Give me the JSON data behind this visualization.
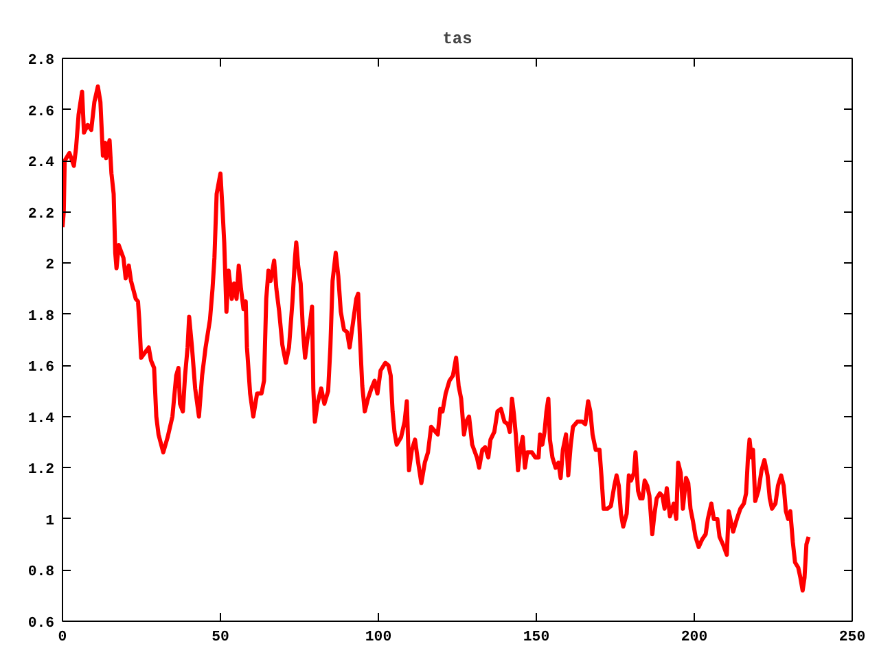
{
  "chart_data": {
    "type": "line",
    "title": "tas",
    "color": "#ff0000",
    "line_style": "solid",
    "xlim": [
      0,
      250
    ],
    "xticks": [
      0,
      50,
      100,
      150,
      200,
      250
    ],
    "ylim": [
      0.6,
      2.8
    ],
    "yticks": [
      0.6,
      0.8,
      1,
      1.2,
      1.4,
      1.6,
      1.8,
      2,
      2.2,
      2.4,
      2.6,
      2.8
    ],
    "x": [
      0,
      0.4,
      0.7,
      2.2,
      3.6,
      4.3,
      5.1,
      6.2,
      6.8,
      8,
      9.1,
      10.1,
      11.2,
      12,
      12.8,
      13.5,
      13.8,
      14.9,
      15.5,
      16.2,
      16.7,
      17.1,
      17.8,
      19.3,
      20,
      21,
      21.7,
      23.2,
      23.9,
      24.3,
      24.9,
      26.1,
      27.3,
      28,
      29,
      29.7,
      30.4,
      31.9,
      33.3,
      34.8,
      36,
      36.7,
      37.2,
      38.1,
      38.8,
      39.6,
      40.1,
      41,
      42,
      43.2,
      44.2,
      45.3,
      46.7,
      47.5,
      48.1,
      48.8,
      50,
      50.7,
      51.2,
      51.9,
      52.6,
      53.6,
      54.3,
      55.1,
      55.8,
      56.5,
      57.3,
      58,
      58.4,
      59.4,
      60.4,
      61.6,
      63,
      63.8,
      64.5,
      65.2,
      65.9,
      67,
      67.7,
      68.6,
      69.6,
      70.7,
      71.7,
      72.8,
      73.6,
      74,
      74.6,
      75.4,
      76.1,
      76.8,
      77.5,
      78.3,
      79,
      79.4,
      79.9,
      80.7,
      81.9,
      82.9,
      84.1,
      84.8,
      85.5,
      86.5,
      87.3,
      88.1,
      89.1,
      90.1,
      90.9,
      92,
      93,
      93.6,
      94.2,
      94.9,
      95.7,
      96.7,
      97.8,
      98.8,
      99.7,
      100.7,
      102.2,
      103.2,
      103.9,
      104.5,
      105.1,
      105.8,
      107.2,
      108.3,
      109,
      109.7,
      110.6,
      111.6,
      112.6,
      113.6,
      114.7,
      115.7,
      116.7,
      118.1,
      118.8,
      119.6,
      120.3,
      121.3,
      122.5,
      123.6,
      124.6,
      125.4,
      126.2,
      127.1,
      127.8,
      128.7,
      129.7,
      131.2,
      131.9,
      132.9,
      133.8,
      134.8,
      135.5,
      136.7,
      137.7,
      138.8,
      139.9,
      141,
      141.6,
      142.3,
      142.9,
      143.5,
      144.2,
      144.9,
      145.7,
      146.4,
      147.1,
      148.6,
      149.7,
      150.7,
      151.2,
      151.9,
      152.6,
      153.2,
      153.8,
      154.3,
      155.1,
      156.1,
      157,
      157.7,
      158.4,
      159.4,
      160.1,
      160.9,
      161.6,
      163,
      164.5,
      165.5,
      166.4,
      167.1,
      167.8,
      168.8,
      170,
      170.6,
      171.3,
      172.5,
      173.6,
      174.7,
      175.4,
      176.1,
      176.8,
      177.5,
      178.6,
      179.3,
      180,
      180.9,
      181.4,
      182.2,
      182.9,
      183.6,
      184.3,
      185.1,
      185.8,
      186.7,
      187.4,
      188.1,
      189.1,
      189.9,
      190.6,
      191.3,
      192.3,
      193.5,
      194.3,
      194.9,
      195.7,
      196.4,
      197.4,
      198.1,
      198.8,
      199.6,
      200.4,
      201.4,
      202.5,
      203.6,
      204.3,
      205.4,
      206.2,
      207.3,
      208,
      209.1,
      210.3,
      210.9,
      211.6,
      212.3,
      213.5,
      214.6,
      215.7,
      216.4,
      217,
      217.5,
      218.1,
      218.6,
      219.3,
      220.3,
      221.3,
      222.2,
      223.2,
      223.9,
      224.6,
      225.7,
      226.5,
      227.5,
      228.3,
      229,
      229.7,
      230.4,
      231.2,
      231.9,
      232.9,
      233.6,
      234.3,
      234.9,
      235.5,
      236.2
    ],
    "values": [
      2.14,
      2.2,
      2.4,
      2.43,
      2.38,
      2.45,
      2.58,
      2.67,
      2.51,
      2.54,
      2.52,
      2.63,
      2.69,
      2.63,
      2.42,
      2.47,
      2.41,
      2.48,
      2.35,
      2.27,
      2.04,
      1.98,
      2.07,
      2.02,
      1.94,
      1.99,
      1.93,
      1.86,
      1.85,
      1.78,
      1.63,
      1.65,
      1.67,
      1.62,
      1.59,
      1.4,
      1.33,
      1.26,
      1.32,
      1.4,
      1.56,
      1.59,
      1.45,
      1.42,
      1.56,
      1.67,
      1.79,
      1.67,
      1.51,
      1.4,
      1.56,
      1.67,
      1.78,
      1.9,
      2.02,
      2.27,
      2.35,
      2.2,
      2.08,
      1.81,
      1.97,
      1.86,
      1.92,
      1.86,
      1.99,
      1.9,
      1.82,
      1.85,
      1.67,
      1.49,
      1.4,
      1.49,
      1.49,
      1.54,
      1.86,
      1.97,
      1.93,
      2.01,
      1.9,
      1.81,
      1.68,
      1.61,
      1.67,
      1.85,
      2.02,
      2.08,
      1.99,
      1.92,
      1.74,
      1.63,
      1.7,
      1.76,
      1.83,
      1.51,
      1.38,
      1.45,
      1.51,
      1.45,
      1.5,
      1.67,
      1.93,
      2.04,
      1.95,
      1.81,
      1.74,
      1.73,
      1.67,
      1.77,
      1.86,
      1.88,
      1.7,
      1.52,
      1.42,
      1.47,
      1.51,
      1.54,
      1.49,
      1.58,
      1.61,
      1.6,
      1.56,
      1.42,
      1.34,
      1.29,
      1.32,
      1.38,
      1.46,
      1.19,
      1.27,
      1.31,
      1.22,
      1.14,
      1.22,
      1.26,
      1.36,
      1.34,
      1.33,
      1.43,
      1.42,
      1.49,
      1.54,
      1.56,
      1.63,
      1.52,
      1.47,
      1.33,
      1.38,
      1.4,
      1.29,
      1.24,
      1.2,
      1.27,
      1.28,
      1.24,
      1.31,
      1.34,
      1.42,
      1.43,
      1.38,
      1.37,
      1.34,
      1.47,
      1.41,
      1.33,
      1.19,
      1.27,
      1.32,
      1.2,
      1.26,
      1.26,
      1.24,
      1.24,
      1.33,
      1.29,
      1.34,
      1.42,
      1.47,
      1.31,
      1.24,
      1.2,
      1.22,
      1.16,
      1.27,
      1.33,
      1.17,
      1.29,
      1.36,
      1.38,
      1.38,
      1.37,
      1.46,
      1.42,
      1.33,
      1.27,
      1.27,
      1.17,
      1.04,
      1.04,
      1.05,
      1.13,
      1.17,
      1.13,
      1.02,
      0.97,
      1.02,
      1.17,
      1.15,
      1.18,
      1.26,
      1.11,
      1.08,
      1.08,
      1.15,
      1.13,
      1.09,
      0.94,
      1.02,
      1.08,
      1.1,
      1.09,
      1.04,
      1.12,
      1.01,
      1.06,
      1.0,
      1.22,
      1.18,
      1.04,
      1.16,
      1.14,
      1.04,
      0.99,
      0.93,
      0.89,
      0.92,
      0.94,
      1.0,
      1.06,
      1.0,
      1.0,
      0.93,
      0.9,
      0.86,
      1.03,
      0.99,
      0.95,
      1.0,
      1.04,
      1.06,
      1.1,
      1.24,
      1.31,
      1.24,
      1.27,
      1.07,
      1.11,
      1.19,
      1.23,
      1.17,
      1.08,
      1.04,
      1.06,
      1.13,
      1.17,
      1.13,
      1.03,
      1.0,
      1.03,
      0.91,
      0.83,
      0.81,
      0.77,
      0.72,
      0.77,
      0.9,
      0.93
    ]
  }
}
